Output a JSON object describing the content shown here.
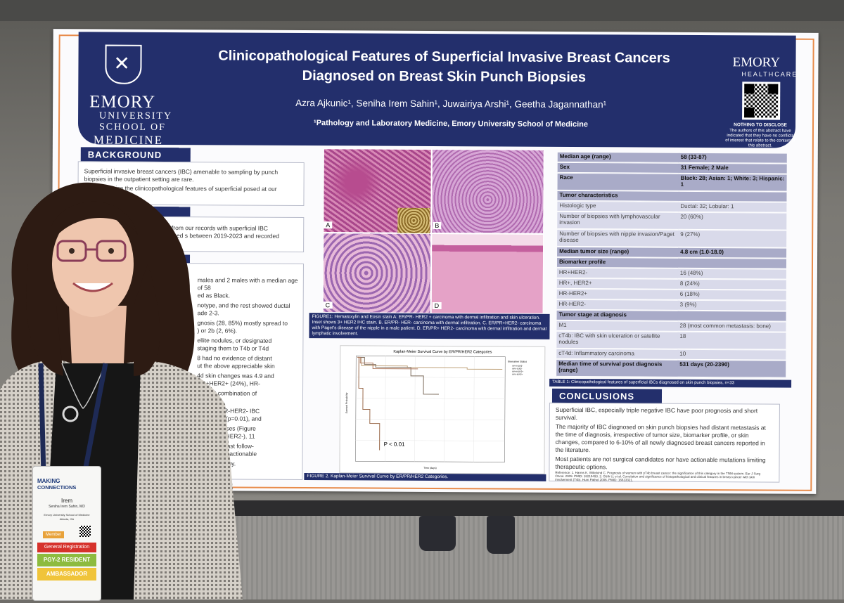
{
  "poster": {
    "title_line1": "Clinicopathological Features of Superficial Invasive Breast Cancers",
    "title_line2": "Diagnosed on Breast Skin Punch Biopsies",
    "authors": "Azra Ajkunic¹, Seniha Irem Sahin¹, Juwairiya Arshi¹, Geetha Jagannathan¹",
    "affiliation": "¹Pathology and Laboratory Medicine, Emory University School of Medicine",
    "left_logo": {
      "line1": "EMORY",
      "line2": "UNIVERSITY",
      "line3": "SCHOOL OF",
      "line4": "MEDICINE"
    },
    "right_logo": {
      "line1": "EMORY",
      "line2": "HEALTHCARE"
    },
    "disclosure_title": "NOTHING TO DISCLOSE",
    "disclosure_text": "The authors of this abstract have indicated that they have no conflicts of interest that relate to the content of this abstract.",
    "background": {
      "heading": "BACKGROUND",
      "bullets": [
        "Superficial invasive breast cancers (IBC) amenable to sampling by punch biopsies in the outpatient setting are rare.",
        "to characterize the clinicopathological features of superficial posed at our institution."
      ]
    },
    "methods": {
      "text": "tients from our records with superficial IBC diagnosed s between 2019-2023 and recorded"
    },
    "results": {
      "lines": [
        "males and 2 males with a median age of 58",
        "ed as Black.",
        "notype, and the rest showed ductal",
        "ade 2-3.",
        "gnosis (28, 85%) mostly spread to",
        ") or 2b (2, 6%).",
        "ellite nodules, or designated",
        "staging them to T4b or T4d",
        "8 had no evidence of distant",
        "ut the above appreciable skin",
        "4d skin changes was 4.9 and",
        "HR+HER2+ (24%), HR-",
        "eived a combination of",
        "py.",
        "vention. HR-HER2- IBC",
        "R+HER2+ (p=0.01), and",
        "ng of diseases (Figure",
        "and 1 HR+HER2-), 11",
        "disease at last follow-",
        "tient had an actionable",
        "hibitor therapy."
      ]
    },
    "figure1": {
      "panel_labels": [
        "A",
        "B",
        "C",
        "D"
      ],
      "caption": "FIGURE1: Hematoxylin and Eosin stain A: ER/PR- HER2 + carcinoma with dermal infiltration and skin ulceration. Inset shows 3+ HER2 IHC stain. B. ER/PR- HER- carcinoma with dermal infiltration. C. ER/PR+HER2- carcinoma with Paget's disease of the nipple in a male patient. D. ER/PR+ HER2- carcinoma with dermal infiltration and dermal lymphatic involvement."
    },
    "figure2": {
      "chart_title": "Kaplan-Meier Survival Curve by ER/PR/HER2 Categories",
      "legend_title": "Biomarker Status",
      "legend": [
        "HR+HER2-",
        "HR-HER2-",
        "HR+HER2+",
        "HR-HER2+"
      ],
      "p_value": "P < 0.01",
      "ylabel": "Survival Probability",
      "xlabel": "Time (days)",
      "caption": "FIGURE 2. Kaplan-Meier Survival Curve by ER/PR/HER2 Categories."
    },
    "table": {
      "rows": [
        {
          "k": "Median age (range)",
          "v": "58 (33-87)",
          "style": "h"
        },
        {
          "k": "Sex",
          "v": "31 Female; 2 Male",
          "style": "h"
        },
        {
          "k": "Race",
          "v": "Black: 28; Asian: 1; White: 3; Hispanic: 1",
          "style": "h"
        },
        {
          "k": "Tumor characteristics",
          "v": "",
          "style": "h"
        },
        {
          "k": "Histologic type",
          "v": "Ductal: 32; Lobular: 1",
          "style": "n"
        },
        {
          "k": "Number of biopsies with lymphovascular invasion",
          "v": "20 (60%)",
          "style": "n"
        },
        {
          "k": "Number of biopsies with nipple invasion/Paget disease",
          "v": "9 (27%)",
          "style": "n"
        },
        {
          "k": "Median tumor size (range)",
          "v": "4.8 cm (1.0-18.0)",
          "style": "h"
        },
        {
          "k": "Biomarker profile",
          "v": "",
          "style": "h"
        },
        {
          "k": "HR+HER2-",
          "v": "16 (48%)",
          "style": "n"
        },
        {
          "k": "HR+, HER2+",
          "v": "8 (24%)",
          "style": "n"
        },
        {
          "k": "HR-HER2+",
          "v": "6 (18%)",
          "style": "n"
        },
        {
          "k": "HR-HER2-",
          "v": "3 (9%)",
          "style": "n"
        },
        {
          "k": "Tumor stage at diagnosis",
          "v": "",
          "style": "h"
        },
        {
          "k": "M1",
          "v": "28 (most common metastasis: bone)",
          "style": "n"
        },
        {
          "k": "cT4b: IBC with skin ulceration or satellite nodules",
          "v": "18",
          "style": "n"
        },
        {
          "k": "cT4d: Inflammatory carcinoma",
          "v": "10",
          "style": "n"
        },
        {
          "k": "Median time of survival post diagnosis (range)",
          "v": "531 days (20-2390)",
          "style": "h"
        }
      ],
      "caption": "TABLE 1: Clinicopathological features of superficial IBCs diagnosed on skin punch biopsies, n=33"
    },
    "conclusions": {
      "heading": "CONCLUSIONS",
      "bullets": [
        "Superficial IBC, especially triple negative IBC have poor prognosis and short survival.",
        "The majority of IBC diagnosed on skin punch biopsies had distant metastasis at the time of diagnosis, irrespective of tumor size, biomarker profile, or skin changes, compared to 6-10% of all newly diagnosed breast cancers reported in the literature.",
        "Most patients are not surgical candidates nor have actionable mutations limiting therapeutic options."
      ],
      "reference": "Reference: 1. Harms K, Wittekind C. Prognosis of women with pT4b breast cancer: the significance of this category in the TNM system. Eur J Surg Oncol. 2009. PMID: 18215493. 2. Güth U, et al. Correlation and significance of histopathological and clinical features in breast cancer with skin involvement (T4b). Hum Pathol 2006. PMID: 16613321."
    }
  },
  "badge": {
    "event_line1": "MAKING",
    "event_line2": "CONNECTIONS",
    "name": "Irem",
    "full_name": "Seniha Irem Sahin, MD",
    "org": "Emory University School of Medicine",
    "location": "Atlanta, GA",
    "ribbon1": "Member",
    "ribbon2": "General Registration",
    "ribbon3": "PGY-2 RESIDENT",
    "ribbon4": "AMBASSADOR"
  },
  "colors": {
    "navy": "#232f6c",
    "orange": "#e88b4a",
    "table_header": "#a9abc8",
    "table_row": "#d9daea"
  }
}
